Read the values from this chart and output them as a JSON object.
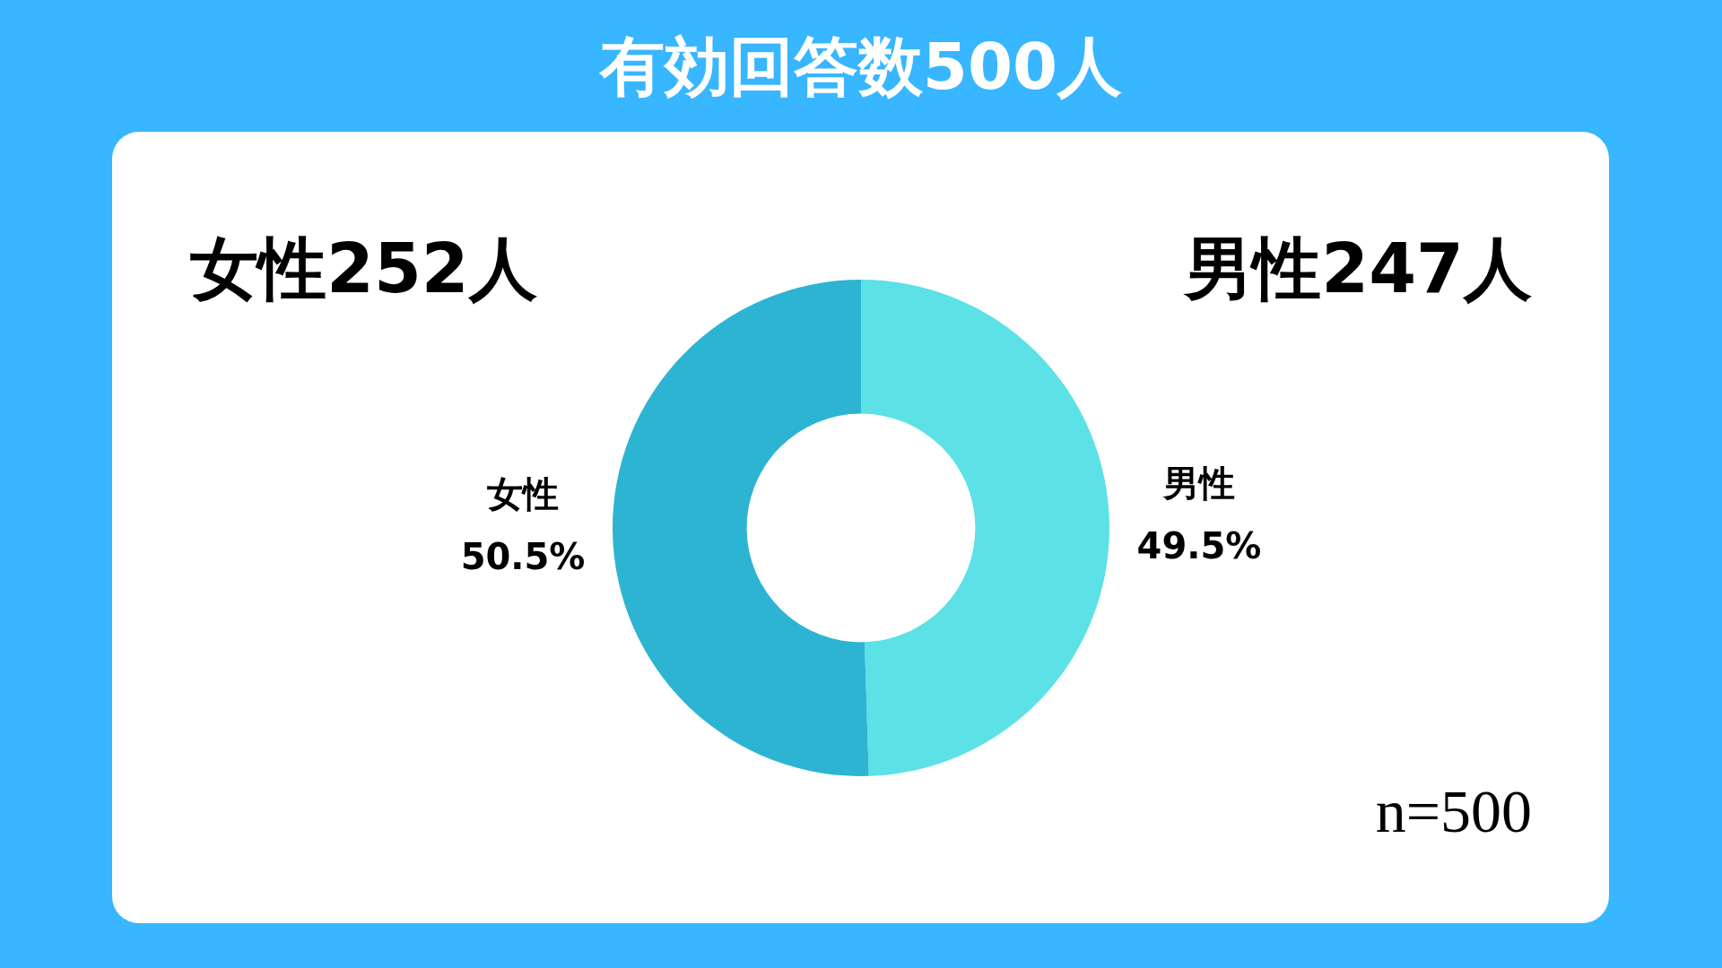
{
  "chart_data": {
    "type": "donut",
    "title": "有効回答数500人",
    "categories": [
      "男性",
      "女性"
    ],
    "values": [
      49.5,
      50.5
    ],
    "colors": [
      "#5ce1e6",
      "#2db4d3"
    ],
    "value_labels": [
      "49.5%",
      "50.5%"
    ],
    "legend": false,
    "annotations": [
      "女性252人",
      "男性247人",
      "n=500"
    ]
  }
}
